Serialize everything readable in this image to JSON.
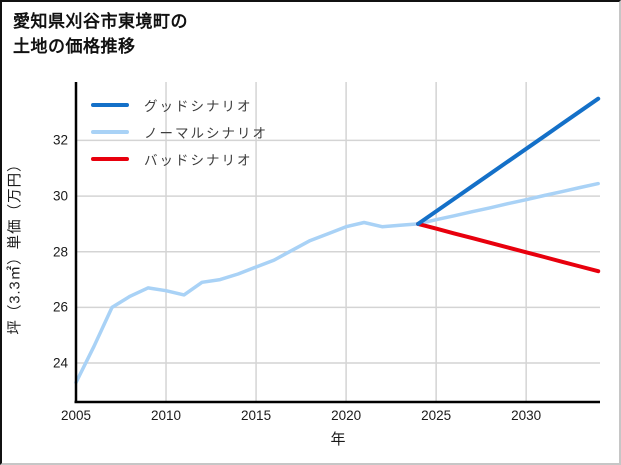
{
  "header": {
    "title_line1": "愛知県刈谷市東境町の",
    "title_line2": "土地の価格推移"
  },
  "chart_data": {
    "type": "line",
    "title": "愛知県刈谷市東境町の土地の価格推移",
    "xlabel": "年",
    "ylabel": "坪（3.3㎡）単価（万円）",
    "unit": "万円",
    "x_ticks": [
      2005,
      2010,
      2015,
      2020,
      2025,
      2030
    ],
    "y_ticks": [
      24,
      26,
      28,
      30,
      32
    ],
    "xlim": [
      2005,
      2034.1
    ],
    "ylim": [
      22.6,
      34.1
    ],
    "grid": true,
    "legend_position": "upper-left-inside",
    "colors": {
      "good": "#1470c8",
      "normal": "#a9d2f6",
      "bad": "#e8000d",
      "gridline": "#d4d4d4",
      "spine": "#000000"
    },
    "series": [
      {
        "name": "グッドシナリオ",
        "key": "good",
        "color": "#1470c8",
        "x": [
          2024,
          2025,
          2026,
          2027,
          2028,
          2029,
          2030,
          2031,
          2032,
          2033,
          2034
        ],
        "values": [
          29.0,
          29.45,
          29.9,
          30.35,
          30.8,
          31.25,
          31.7,
          32.15,
          32.6,
          33.05,
          33.5
        ]
      },
      {
        "name": "ノーマルシナリオ",
        "key": "normal",
        "color": "#a9d2f6",
        "x": [
          2005,
          2006,
          2007,
          2008,
          2009,
          2010,
          2011,
          2012,
          2013,
          2014,
          2015,
          2016,
          2017,
          2018,
          2019,
          2020,
          2021,
          2022,
          2023,
          2024,
          2025,
          2026,
          2027,
          2028,
          2029,
          2030,
          2031,
          2032,
          2033,
          2034
        ],
        "values": [
          23.3,
          24.6,
          26.0,
          26.4,
          26.7,
          26.6,
          26.45,
          26.9,
          27.0,
          27.2,
          27.45,
          27.7,
          28.05,
          28.4,
          28.65,
          28.9,
          29.05,
          28.9,
          28.95,
          29.0,
          29.15,
          29.29,
          29.44,
          29.58,
          29.73,
          29.87,
          30.02,
          30.16,
          30.31,
          30.45
        ]
      },
      {
        "name": "バッドシナリオ",
        "key": "bad",
        "color": "#e8000d",
        "x": [
          2024,
          2025,
          2026,
          2027,
          2028,
          2029,
          2030,
          2031,
          2032,
          2033,
          2034
        ],
        "values": [
          29.0,
          28.83,
          28.66,
          28.49,
          28.32,
          28.15,
          27.98,
          27.81,
          27.64,
          27.47,
          27.3
        ]
      }
    ]
  }
}
